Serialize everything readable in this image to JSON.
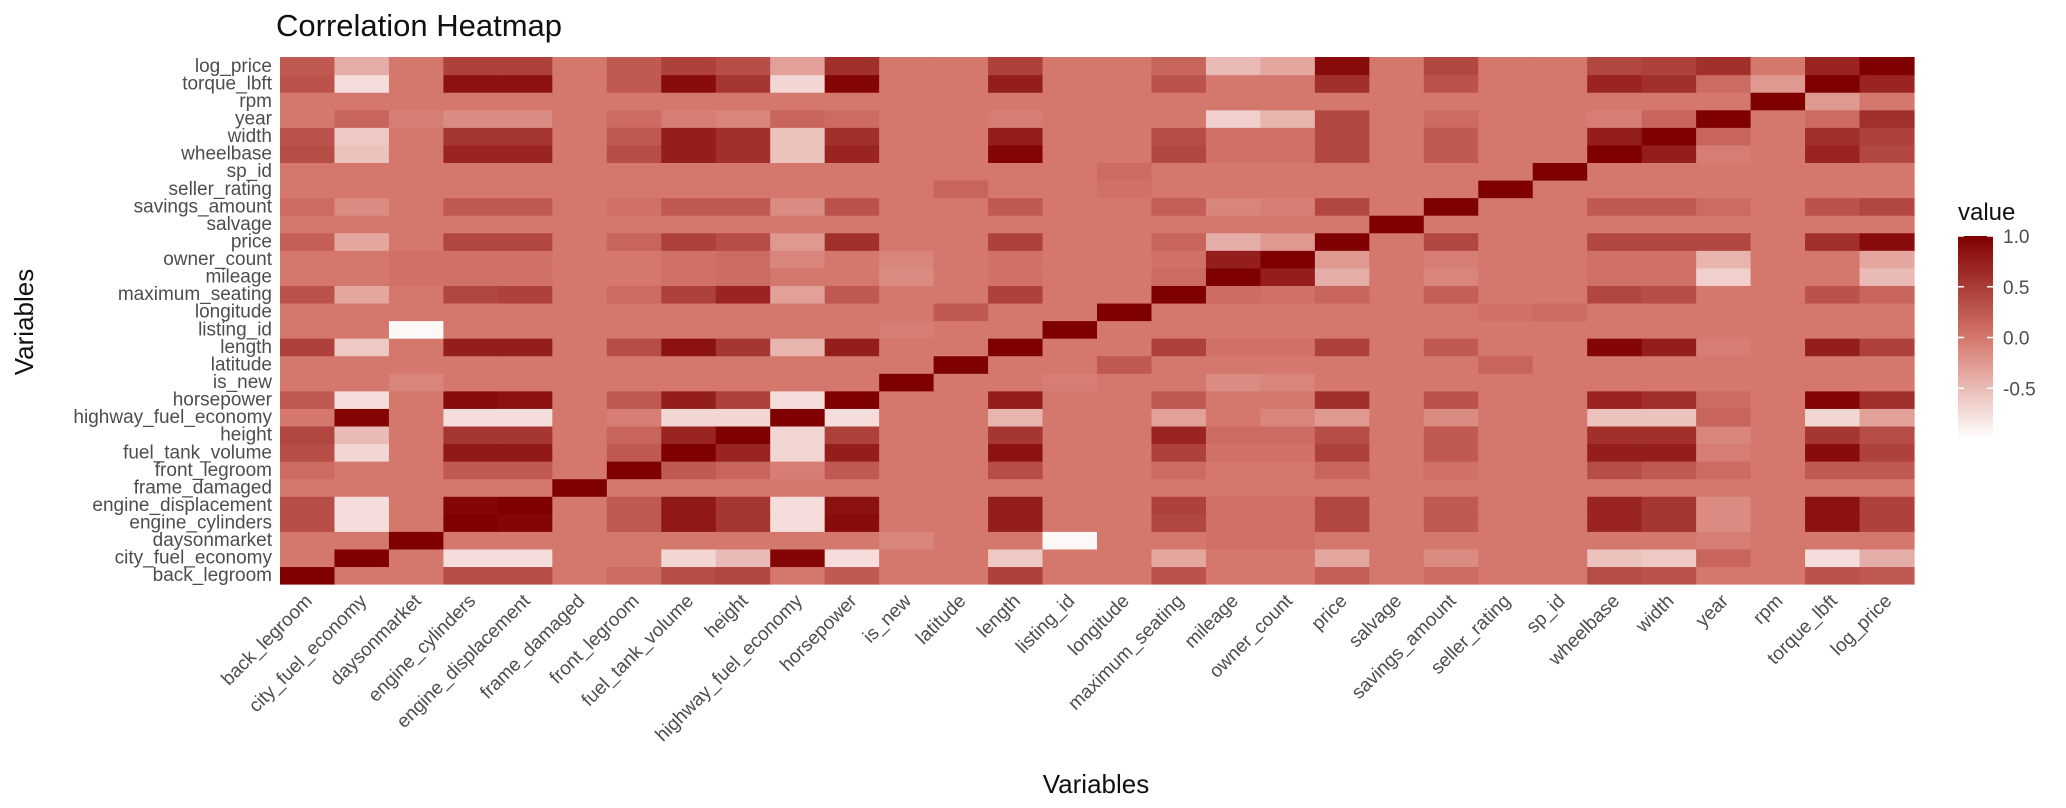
{
  "chart_data": {
    "type": "heatmap",
    "title": "Correlation Heatmap",
    "xlabel": "Variables",
    "ylabel": "Variables",
    "variables": [
      "back_legroom",
      "city_fuel_economy",
      "daysonmarket",
      "engine_cylinders",
      "engine_displacement",
      "frame_damaged",
      "front_legroom",
      "fuel_tank_volume",
      "height",
      "highway_fuel_economy",
      "horsepower",
      "is_new",
      "latitude",
      "length",
      "listing_id",
      "longitude",
      "maximum_seating",
      "mileage",
      "owner_count",
      "price",
      "salvage",
      "savings_amount",
      "seller_rating",
      "sp_id",
      "wheelbase",
      "width",
      "year",
      "rpm",
      "torque_lbft",
      "log_price"
    ],
    "legend": {
      "title": "value",
      "ticks": [
        1.0,
        0.5,
        0.0,
        -0.5
      ],
      "tick_labels": [
        "1.0",
        "0.5",
        "0.0",
        "-0.5"
      ],
      "range": [
        -1.0,
        1.0
      ],
      "low_color": "#ffffff",
      "mid_color": "#d4776c",
      "high_color": "#7f0000",
      "position": "right"
    },
    "values": [
      [
        1.0,
        0.0,
        0.0,
        0.35,
        0.35,
        0.0,
        0.1,
        0.35,
        0.4,
        0.0,
        0.25,
        0.0,
        0.0,
        0.45,
        0.0,
        0.0,
        0.3,
        0.0,
        0.0,
        0.2,
        0.0,
        0.1,
        0.0,
        0.0,
        0.35,
        0.3,
        0.0,
        0.0,
        0.3,
        0.25
      ],
      [
        0.0,
        1.0,
        0.0,
        -0.75,
        -0.75,
        0.0,
        0.0,
        -0.7,
        -0.5,
        0.95,
        -0.75,
        0.0,
        0.0,
        -0.6,
        0.0,
        0.0,
        -0.35,
        0.0,
        0.0,
        -0.35,
        0.0,
        -0.15,
        0.0,
        0.0,
        -0.55,
        -0.6,
        0.15,
        0.0,
        -0.75,
        -0.4
      ],
      [
        0.0,
        0.0,
        1.0,
        0.0,
        0.0,
        0.0,
        0.0,
        0.0,
        0.0,
        0.0,
        0.0,
        -0.1,
        0.0,
        0.0,
        -0.95,
        0.0,
        0.0,
        0.05,
        0.05,
        0.0,
        0.0,
        0.0,
        0.0,
        0.0,
        0.0,
        0.0,
        -0.05,
        0.0,
        0.0,
        0.0
      ],
      [
        0.35,
        -0.75,
        0.0,
        1.0,
        0.95,
        0.0,
        0.25,
        0.8,
        0.55,
        -0.75,
        0.9,
        0.0,
        0.0,
        0.75,
        0.0,
        0.0,
        0.4,
        0.05,
        0.05,
        0.4,
        0.0,
        0.25,
        0.0,
        0.0,
        0.7,
        0.55,
        -0.15,
        0.0,
        0.85,
        0.45
      ],
      [
        0.35,
        -0.75,
        0.0,
        0.95,
        1.0,
        0.0,
        0.25,
        0.8,
        0.55,
        -0.75,
        0.85,
        0.0,
        0.0,
        0.75,
        0.0,
        0.0,
        0.45,
        0.05,
        0.05,
        0.4,
        0.0,
        0.25,
        0.0,
        0.0,
        0.7,
        0.55,
        -0.15,
        0.0,
        0.85,
        0.45
      ],
      [
        0.0,
        0.0,
        0.0,
        0.0,
        0.0,
        1.0,
        0.0,
        0.0,
        0.0,
        0.0,
        0.0,
        0.0,
        0.0,
        0.0,
        0.0,
        0.0,
        0.0,
        0.0,
        0.0,
        0.0,
        0.0,
        0.0,
        0.0,
        0.0,
        0.0,
        0.0,
        0.0,
        0.0,
        0.0,
        0.0
      ],
      [
        0.1,
        0.0,
        0.0,
        0.25,
        0.25,
        0.0,
        1.0,
        0.25,
        0.15,
        -0.05,
        0.25,
        0.0,
        0.0,
        0.35,
        0.0,
        0.0,
        0.1,
        0.0,
        0.0,
        0.15,
        0.0,
        0.05,
        0.0,
        0.0,
        0.35,
        0.25,
        0.1,
        0.0,
        0.25,
        0.25
      ],
      [
        0.35,
        -0.7,
        0.0,
        0.8,
        0.8,
        0.0,
        0.25,
        1.0,
        0.7,
        -0.7,
        0.75,
        0.0,
        0.0,
        0.85,
        0.0,
        0.0,
        0.45,
        0.05,
        0.05,
        0.45,
        0.0,
        0.25,
        0.0,
        0.0,
        0.75,
        0.75,
        -0.05,
        0.0,
        0.9,
        0.45
      ],
      [
        0.4,
        -0.5,
        0.0,
        0.55,
        0.55,
        0.0,
        0.15,
        0.7,
        1.0,
        -0.7,
        0.45,
        0.0,
        0.0,
        0.55,
        0.0,
        0.0,
        0.7,
        0.1,
        0.1,
        0.35,
        0.0,
        0.25,
        0.0,
        0.0,
        0.6,
        0.6,
        -0.1,
        0.0,
        0.55,
        0.35
      ],
      [
        0.0,
        0.95,
        0.0,
        -0.75,
        -0.75,
        0.0,
        -0.05,
        -0.7,
        -0.7,
        1.0,
        -0.75,
        0.0,
        0.0,
        -0.45,
        0.0,
        0.0,
        -0.3,
        0.0,
        -0.1,
        -0.25,
        0.0,
        -0.15,
        0.0,
        0.0,
        -0.55,
        -0.55,
        0.15,
        0.0,
        -0.7,
        -0.3
      ],
      [
        0.25,
        -0.75,
        0.0,
        0.9,
        0.85,
        0.0,
        0.25,
        0.75,
        0.45,
        -0.75,
        1.0,
        0.0,
        0.0,
        0.75,
        0.0,
        0.0,
        0.25,
        0.0,
        0.0,
        0.6,
        0.0,
        0.3,
        0.0,
        0.0,
        0.7,
        0.6,
        0.1,
        0.0,
        0.95,
        0.6
      ],
      [
        0.0,
        0.0,
        -0.1,
        0.0,
        0.0,
        0.0,
        0.0,
        0.0,
        0.0,
        0.0,
        0.0,
        1.0,
        0.0,
        0.0,
        -0.05,
        0.0,
        0.0,
        -0.15,
        -0.1,
        0.0,
        0.0,
        0.0,
        0.0,
        0.0,
        0.0,
        0.0,
        0.0,
        0.0,
        0.0,
        0.0
      ],
      [
        0.0,
        0.0,
        0.0,
        0.0,
        0.0,
        0.0,
        0.0,
        0.0,
        0.0,
        0.0,
        0.0,
        0.0,
        1.0,
        0.0,
        0.0,
        0.25,
        0.0,
        0.0,
        0.0,
        0.0,
        0.0,
        0.0,
        0.15,
        0.0,
        0.0,
        0.0,
        0.0,
        0.0,
        0.0,
        0.0
      ],
      [
        0.45,
        -0.6,
        0.0,
        0.75,
        0.75,
        0.0,
        0.35,
        0.85,
        0.55,
        -0.45,
        0.75,
        0.0,
        0.0,
        1.0,
        0.0,
        0.0,
        0.45,
        0.05,
        0.05,
        0.45,
        0.0,
        0.25,
        0.0,
        0.0,
        0.95,
        0.75,
        -0.05,
        0.0,
        0.75,
        0.45
      ],
      [
        0.0,
        0.0,
        -0.95,
        0.0,
        0.0,
        0.0,
        0.0,
        0.0,
        0.0,
        0.0,
        0.0,
        -0.05,
        0.0,
        0.0,
        1.0,
        0.0,
        0.0,
        0.0,
        0.0,
        0.0,
        0.0,
        0.0,
        0.0,
        0.0,
        0.0,
        0.0,
        0.0,
        0.0,
        0.0,
        0.0
      ],
      [
        0.0,
        0.0,
        0.0,
        0.0,
        0.0,
        0.0,
        0.0,
        0.0,
        0.0,
        0.0,
        0.0,
        0.0,
        0.25,
        0.0,
        0.0,
        1.0,
        0.0,
        0.0,
        0.0,
        0.0,
        0.0,
        0.0,
        0.05,
        0.1,
        0.0,
        0.0,
        0.0,
        0.0,
        0.0,
        0.0
      ],
      [
        0.3,
        -0.35,
        0.0,
        0.4,
        0.45,
        0.0,
        0.1,
        0.45,
        0.7,
        -0.3,
        0.25,
        0.0,
        0.0,
        0.45,
        0.0,
        0.0,
        1.0,
        0.1,
        0.05,
        0.15,
        0.0,
        0.2,
        0.0,
        0.0,
        0.4,
        0.35,
        0.0,
        0.0,
        0.3,
        0.15
      ],
      [
        0.0,
        0.0,
        0.05,
        0.05,
        0.05,
        0.0,
        0.0,
        0.05,
        0.1,
        0.0,
        0.0,
        -0.15,
        0.0,
        0.05,
        0.0,
        0.0,
        0.1,
        1.0,
        0.75,
        -0.4,
        0.0,
        -0.1,
        0.0,
        0.0,
        0.05,
        0.05,
        -0.65,
        0.0,
        0.0,
        -0.5
      ],
      [
        0.0,
        0.0,
        0.05,
        0.05,
        0.05,
        0.0,
        0.0,
        0.05,
        0.1,
        -0.1,
        0.0,
        -0.1,
        0.0,
        0.05,
        0.0,
        0.0,
        0.05,
        0.75,
        1.0,
        -0.25,
        0.0,
        -0.05,
        0.0,
        0.0,
        0.05,
        0.05,
        -0.45,
        0.0,
        0.0,
        -0.35
      ],
      [
        0.2,
        -0.35,
        0.0,
        0.4,
        0.4,
        0.0,
        0.15,
        0.45,
        0.35,
        -0.25,
        0.6,
        0.0,
        0.0,
        0.45,
        0.0,
        0.0,
        0.15,
        -0.4,
        -0.25,
        1.0,
        0.0,
        0.4,
        0.0,
        0.0,
        0.4,
        0.4,
        0.4,
        0.0,
        0.6,
        0.9
      ],
      [
        0.0,
        0.0,
        0.0,
        0.0,
        0.0,
        0.0,
        0.0,
        0.0,
        0.0,
        0.0,
        0.0,
        0.0,
        0.0,
        0.0,
        0.0,
        0.0,
        0.0,
        0.0,
        0.0,
        0.0,
        1.0,
        0.0,
        0.0,
        0.0,
        0.0,
        0.0,
        0.0,
        0.0,
        0.0,
        0.0
      ],
      [
        0.1,
        -0.15,
        0.0,
        0.25,
        0.25,
        0.0,
        0.05,
        0.25,
        0.25,
        -0.15,
        0.3,
        0.0,
        0.0,
        0.25,
        0.0,
        0.0,
        0.2,
        -0.1,
        -0.05,
        0.4,
        0.0,
        1.0,
        0.0,
        0.0,
        0.25,
        0.25,
        0.1,
        0.0,
        0.3,
        0.4
      ],
      [
        0.0,
        0.0,
        0.0,
        0.0,
        0.0,
        0.0,
        0.0,
        0.0,
        0.0,
        0.0,
        0.0,
        0.0,
        0.15,
        0.0,
        0.0,
        0.05,
        0.0,
        0.0,
        0.0,
        0.0,
        0.0,
        0.0,
        1.0,
        0.0,
        0.0,
        0.0,
        0.0,
        0.0,
        0.0,
        0.0
      ],
      [
        0.0,
        0.0,
        0.0,
        0.0,
        0.0,
        0.0,
        0.0,
        0.0,
        0.0,
        0.0,
        0.0,
        0.0,
        0.0,
        0.0,
        0.0,
        0.1,
        0.0,
        0.0,
        0.0,
        0.0,
        0.0,
        0.0,
        0.0,
        1.0,
        0.0,
        0.0,
        0.0,
        0.0,
        0.0,
        0.0
      ],
      [
        0.35,
        -0.55,
        0.0,
        0.7,
        0.7,
        0.0,
        0.35,
        0.75,
        0.6,
        -0.55,
        0.7,
        0.0,
        0.0,
        0.95,
        0.0,
        0.0,
        0.4,
        0.05,
        0.05,
        0.4,
        0.0,
        0.25,
        0.0,
        0.0,
        1.0,
        0.75,
        -0.05,
        0.0,
        0.7,
        0.4
      ],
      [
        0.3,
        -0.6,
        0.0,
        0.55,
        0.55,
        0.0,
        0.25,
        0.75,
        0.6,
        -0.55,
        0.6,
        0.0,
        0.0,
        0.75,
        0.0,
        0.0,
        0.35,
        0.05,
        0.05,
        0.4,
        0.0,
        0.25,
        0.0,
        0.0,
        0.75,
        1.0,
        0.15,
        0.0,
        0.6,
        0.45
      ],
      [
        0.0,
        0.15,
        -0.05,
        -0.15,
        -0.15,
        0.0,
        0.1,
        -0.05,
        -0.1,
        0.15,
        0.1,
        0.0,
        0.0,
        -0.05,
        0.0,
        0.0,
        0.0,
        -0.65,
        -0.45,
        0.4,
        0.0,
        0.1,
        0.0,
        0.0,
        -0.05,
        0.15,
        1.0,
        0.0,
        0.1,
        0.6
      ],
      [
        0.0,
        0.0,
        0.0,
        0.0,
        0.0,
        0.0,
        0.0,
        0.0,
        0.0,
        0.0,
        0.0,
        0.0,
        0.0,
        0.0,
        0.0,
        0.0,
        0.0,
        0.0,
        0.0,
        0.0,
        0.0,
        0.0,
        0.0,
        0.0,
        0.0,
        0.0,
        0.0,
        1.0,
        -0.25,
        0.0
      ],
      [
        0.3,
        -0.75,
        0.0,
        0.85,
        0.85,
        0.0,
        0.25,
        0.9,
        0.55,
        -0.7,
        0.95,
        0.0,
        0.0,
        0.75,
        0.0,
        0.0,
        0.3,
        0.0,
        0.0,
        0.6,
        0.0,
        0.3,
        0.0,
        0.0,
        0.7,
        0.6,
        0.1,
        -0.25,
        1.0,
        0.7
      ],
      [
        0.25,
        -0.4,
        0.0,
        0.45,
        0.45,
        0.0,
        0.25,
        0.45,
        0.35,
        -0.3,
        0.6,
        0.0,
        0.0,
        0.45,
        0.0,
        0.0,
        0.15,
        -0.5,
        -0.35,
        0.9,
        0.0,
        0.4,
        0.0,
        0.0,
        0.4,
        0.45,
        0.6,
        0.0,
        0.7,
        1.0
      ]
    ]
  }
}
